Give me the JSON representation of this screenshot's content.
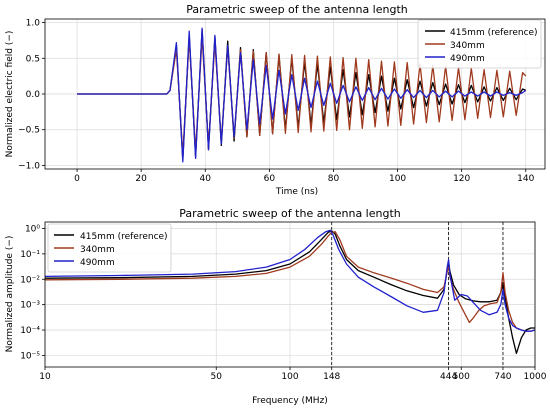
{
  "chart_data": [
    {
      "type": "line",
      "title": "Parametric sweep of the antenna length",
      "xlabel": "Time (ns)",
      "ylabel": "Normalized electric field (−)",
      "xlim": [
        -10,
        146
      ],
      "ylim": [
        -1.05,
        1.05
      ],
      "xticks": [
        0,
        20,
        40,
        60,
        80,
        100,
        120,
        140
      ],
      "xtick_labels": [
        "0",
        "20",
        "40",
        "60",
        "80",
        "100",
        "120",
        "140"
      ],
      "yticks": [
        -1.0,
        -0.5,
        0.0,
        0.5,
        1.0
      ],
      "ytick_labels": [
        "−1.0",
        "−0.5",
        "0.0",
        "0.5",
        "1.0"
      ],
      "grid": true,
      "legend_position": "top-right",
      "series": [
        {
          "name": "415mm (reference)",
          "color": "#000000",
          "x": [
            0,
            28,
            29,
            31,
            33,
            35,
            37,
            39,
            41,
            43,
            45,
            47,
            49,
            51,
            53,
            55,
            57,
            59,
            61,
            63,
            65,
            67,
            69,
            71,
            73,
            75,
            77,
            79,
            81,
            83,
            85,
            87,
            89,
            91,
            93,
            95,
            97,
            99,
            101,
            103,
            105,
            107,
            109,
            111,
            113,
            115,
            117,
            119,
            121,
            123,
            125,
            127,
            129,
            131,
            133,
            135,
            137,
            139,
            140
          ],
          "y": [
            0,
            0,
            0.05,
            0.68,
            -0.92,
            0.82,
            -0.88,
            0.9,
            -0.78,
            0.8,
            -0.72,
            0.74,
            -0.66,
            0.65,
            -0.6,
            0.62,
            -0.58,
            0.58,
            -0.55,
            0.54,
            -0.5,
            0.5,
            -0.47,
            0.45,
            -0.43,
            0.42,
            -0.4,
            0.38,
            -0.36,
            0.34,
            -0.32,
            0.3,
            -0.29,
            0.27,
            -0.26,
            0.25,
            -0.24,
            0.22,
            -0.21,
            0.2,
            -0.19,
            0.18,
            -0.17,
            0.16,
            -0.15,
            0.14,
            -0.14,
            0.13,
            -0.12,
            0.12,
            -0.11,
            0.1,
            -0.1,
            0.09,
            -0.09,
            0.08,
            -0.08,
            0.07,
            0.05
          ]
        },
        {
          "name": "340mm",
          "color": "#a03a1e",
          "x": [
            0,
            28,
            29,
            31,
            33,
            35,
            37,
            39,
            41,
            43,
            45,
            47,
            49,
            51,
            53,
            55,
            57,
            59,
            61,
            63,
            65,
            67,
            69,
            71,
            73,
            75,
            77,
            79,
            81,
            83,
            85,
            87,
            89,
            91,
            93,
            95,
            97,
            99,
            101,
            103,
            105,
            107,
            109,
            111,
            113,
            115,
            117,
            119,
            121,
            123,
            125,
            127,
            129,
            131,
            133,
            135,
            137,
            139,
            140
          ],
          "y": [
            0,
            0,
            0.05,
            0.62,
            -0.85,
            0.78,
            -0.8,
            0.8,
            -0.72,
            0.72,
            -0.66,
            0.66,
            -0.62,
            0.62,
            -0.6,
            0.6,
            -0.58,
            0.58,
            -0.56,
            0.56,
            -0.55,
            0.55,
            -0.54,
            0.54,
            -0.53,
            0.53,
            -0.52,
            0.52,
            -0.51,
            0.51,
            -0.5,
            0.5,
            -0.48,
            0.48,
            -0.46,
            0.46,
            -0.45,
            0.45,
            -0.44,
            0.44,
            -0.42,
            0.42,
            -0.4,
            0.4,
            -0.39,
            0.39,
            -0.37,
            0.37,
            -0.36,
            0.36,
            -0.34,
            0.34,
            -0.33,
            0.33,
            -0.32,
            0.32,
            -0.3,
            0.3,
            0.25
          ]
        },
        {
          "name": "490mm",
          "color": "#2222cc",
          "x": [
            0,
            28,
            29,
            31,
            33,
            35,
            37,
            39,
            41,
            43,
            45,
            47,
            49,
            51,
            53,
            55,
            57,
            59,
            61,
            63,
            65,
            67,
            69,
            71,
            73,
            75,
            77,
            79,
            81,
            83,
            85,
            87,
            89,
            91,
            93,
            95,
            97,
            99,
            101,
            103,
            105,
            107,
            109,
            111,
            113,
            115,
            117,
            119,
            121,
            123,
            125,
            127,
            129,
            131,
            133,
            135,
            137,
            139,
            140
          ],
          "y": [
            0,
            0,
            0.05,
            0.72,
            -0.95,
            0.88,
            -0.9,
            0.92,
            -0.78,
            0.82,
            -0.7,
            0.68,
            -0.6,
            0.58,
            -0.5,
            0.48,
            -0.42,
            0.4,
            -0.35,
            0.33,
            -0.28,
            0.27,
            -0.23,
            0.22,
            -0.19,
            0.18,
            -0.16,
            0.15,
            -0.13,
            0.12,
            -0.11,
            0.1,
            -0.09,
            0.09,
            -0.08,
            0.08,
            -0.07,
            0.07,
            -0.06,
            0.06,
            -0.05,
            0.05,
            -0.05,
            0.05,
            -0.04,
            0.04,
            -0.04,
            0.04,
            -0.03,
            0.03,
            -0.03,
            0.03,
            -0.03,
            0.03,
            -0.02,
            0.02,
            -0.02,
            0.02,
            0.05
          ]
        }
      ]
    },
    {
      "type": "line",
      "title": "Parametric sweep of the antenna length",
      "xlabel": "Frequency (MHz)",
      "ylabel": "Normalized amplitude (−)",
      "xscale": "log",
      "yscale": "log",
      "xlim": [
        10,
        1000
      ],
      "ylim": [
        3.5e-06,
        1.8
      ],
      "xticks": [
        10,
        50,
        100,
        148,
        444,
        500,
        740,
        1000
      ],
      "xtick_labels": [
        "10",
        "50",
        "100",
        "148",
        "444",
        "500",
        "740",
        "1000"
      ],
      "yticks": [
        1e-05,
        0.0001,
        0.001,
        0.01,
        0.1,
        1
      ],
      "ytick_labels": [
        "10⁻⁵",
        "10⁻⁴",
        "10⁻³",
        "10⁻²",
        "10⁻¹",
        "10⁰"
      ],
      "grid": true,
      "vlines": [
        148,
        444,
        740
      ],
      "legend_position": "top-left",
      "series": [
        {
          "name": "415mm (reference)",
          "color": "#000000",
          "x": [
            10,
            20,
            40,
            60,
            80,
            100,
            120,
            135,
            143,
            148,
            153,
            160,
            170,
            190,
            220,
            260,
            300,
            350,
            400,
            425,
            438,
            444,
            450,
            465,
            490,
            520,
            560,
            600,
            650,
            700,
            725,
            740,
            755,
            780,
            810,
            840,
            880,
            920,
            960,
            1000
          ],
          "y": [
            0.011,
            0.0115,
            0.013,
            0.016,
            0.022,
            0.04,
            0.12,
            0.38,
            0.7,
            0.8,
            0.6,
            0.2,
            0.06,
            0.022,
            0.012,
            0.006,
            0.0035,
            0.0023,
            0.0018,
            0.004,
            0.022,
            0.045,
            0.02,
            0.006,
            0.0025,
            0.0017,
            0.0014,
            0.0013,
            0.0013,
            0.0015,
            0.003,
            0.007,
            0.002,
            0.0003,
            5e-05,
            1.2e-05,
            5e-05,
            0.0001,
            0.00012,
            0.00012
          ]
        },
        {
          "name": "340mm",
          "color": "#a03a1e",
          "x": [
            10,
            20,
            40,
            60,
            80,
            100,
            120,
            135,
            143,
            148,
            153,
            160,
            170,
            190,
            220,
            260,
            300,
            350,
            400,
            425,
            438,
            444,
            450,
            465,
            490,
            520,
            540,
            560,
            590,
            620,
            660,
            700,
            725,
            740,
            755,
            780,
            810,
            840,
            880,
            920,
            960,
            1000
          ],
          "y": [
            0.0095,
            0.01,
            0.011,
            0.013,
            0.017,
            0.03,
            0.08,
            0.25,
            0.5,
            0.7,
            0.75,
            0.35,
            0.08,
            0.03,
            0.018,
            0.011,
            0.007,
            0.004,
            0.003,
            0.005,
            0.02,
            0.03,
            0.012,
            0.004,
            0.0012,
            0.0004,
            0.0002,
            0.0003,
            0.0006,
            0.0009,
            0.0011,
            0.0012,
            0.003,
            0.018,
            0.003,
            0.0006,
            0.0002,
            0.00012,
            0.0001,
            9e-05,
            9e-05,
            0.0001
          ]
        },
        {
          "name": "490mm",
          "color": "#2222cc",
          "x": [
            10,
            20,
            40,
            60,
            80,
            100,
            115,
            130,
            140,
            146,
            150,
            158,
            170,
            190,
            220,
            260,
            300,
            350,
            400,
            425,
            438,
            444,
            450,
            470,
            500,
            530,
            560,
            600,
            650,
            700,
            725,
            740,
            755,
            780,
            810,
            840,
            880,
            920,
            960,
            1000
          ],
          "y": [
            0.013,
            0.014,
            0.016,
            0.02,
            0.03,
            0.06,
            0.15,
            0.45,
            0.75,
            0.85,
            0.55,
            0.15,
            0.04,
            0.012,
            0.005,
            0.002,
            0.0009,
            0.0005,
            0.0006,
            0.003,
            0.03,
            0.06,
            0.015,
            0.0015,
            0.0025,
            0.0022,
            0.0012,
            0.0006,
            0.0004,
            0.0005,
            0.001,
            0.004,
            0.001,
            0.0003,
            0.00015,
            0.00012,
            0.0001,
            9e-05,
            9e-05,
            0.0001
          ]
        }
      ]
    }
  ]
}
